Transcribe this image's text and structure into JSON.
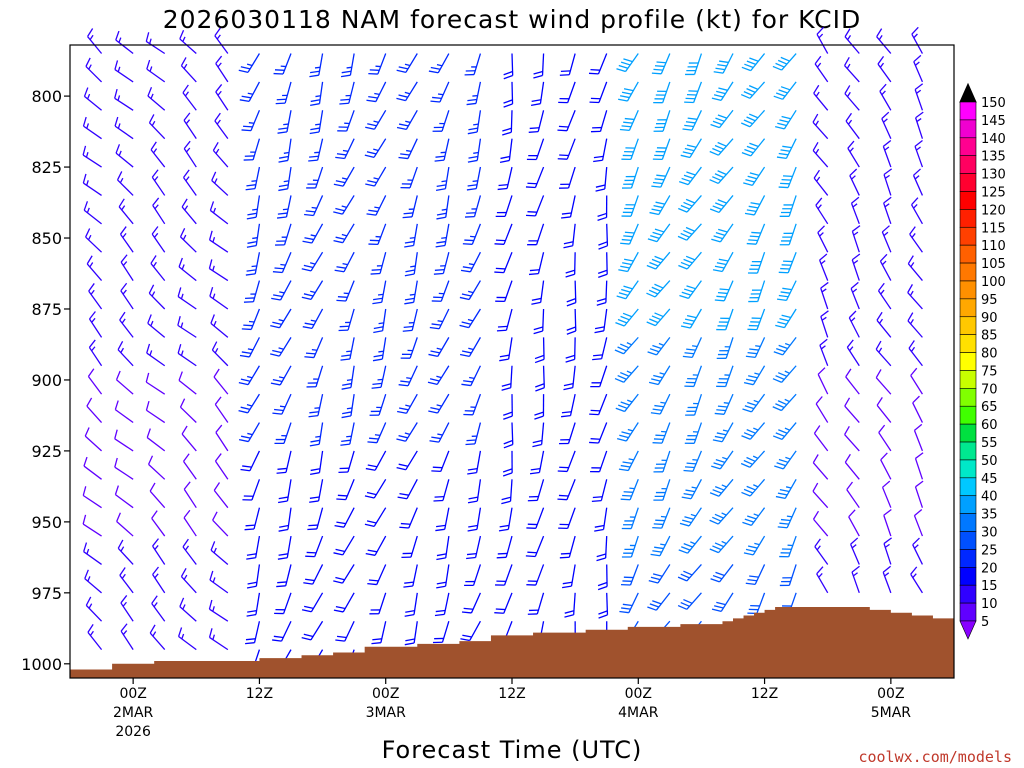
{
  "chart_data": {
    "type": "wind-barb time-height profile",
    "title": "2026030118 NAM forecast wind profile (kt) for KCID",
    "xlabel": "Forecast Time (UTC)",
    "credit": "coolwx.com/models",
    "y_ticks": [
      "800",
      "825",
      "850",
      "875",
      "900",
      "925",
      "950",
      "975",
      "1000"
    ],
    "x_ticks": [
      {
        "hour": "00Z",
        "date": "2MAR",
        "year": "2026"
      },
      {
        "hour": "12Z",
        "date": "",
        "year": ""
      },
      {
        "hour": "00Z",
        "date": "3MAR",
        "year": ""
      },
      {
        "hour": "12Z",
        "date": "",
        "year": ""
      },
      {
        "hour": "00Z",
        "date": "4MAR",
        "year": ""
      },
      {
        "hour": "12Z",
        "date": "",
        "year": ""
      },
      {
        "hour": "00Z",
        "date": "5MAR",
        "year": ""
      }
    ],
    "ylim": [
      1005,
      782
    ],
    "xlim_hours": [
      0,
      84
    ],
    "colorbar": {
      "labels": [
        "150",
        "145",
        "140",
        "135",
        "130",
        "125",
        "120",
        "115",
        "110",
        "105",
        "100",
        "95",
        "90",
        "85",
        "80",
        "75",
        "70",
        "65",
        "60",
        "55",
        "50",
        "45",
        "40",
        "35",
        "30",
        "25",
        "20",
        "15",
        "10",
        "5"
      ],
      "colors": [
        "#ff00ff",
        "#f000d0",
        "#ff0090",
        "#ff0060",
        "#ff0030",
        "#ff0000",
        "#ff2000",
        "#ff4000",
        "#ff6000",
        "#ff7800",
        "#ff9000",
        "#ffa800",
        "#ffc800",
        "#ffe000",
        "#ffff00",
        "#c8ff00",
        "#80ff00",
        "#40ff00",
        "#00e040",
        "#00e890",
        "#00e8c8",
        "#00c8ff",
        "#00a0ff",
        "#0078ff",
        "#0050ff",
        "#0028ff",
        "#0000ff",
        "#3000ff",
        "#6000ff",
        "#8800ff"
      ],
      "min": 5,
      "max": 150
    },
    "surface_pressure_steps": [
      [
        0,
        1002
      ],
      [
        4,
        1000
      ],
      [
        8,
        999
      ],
      [
        14,
        999
      ],
      [
        18,
        998
      ],
      [
        22,
        997
      ],
      [
        25,
        996
      ],
      [
        28,
        994
      ],
      [
        33,
        993
      ],
      [
        37,
        992
      ],
      [
        40,
        990
      ],
      [
        44,
        989
      ],
      [
        49,
        988
      ],
      [
        53,
        987
      ],
      [
        58,
        986
      ],
      [
        62,
        985
      ],
      [
        63,
        984
      ],
      [
        64,
        983
      ],
      [
        65,
        982
      ],
      [
        66,
        981
      ],
      [
        67,
        980
      ],
      [
        72,
        980
      ],
      [
        75,
        980
      ],
      [
        76,
        981
      ],
      [
        78,
        982
      ],
      [
        80,
        983
      ],
      [
        82,
        984
      ],
      [
        84,
        984
      ]
    ],
    "terrain_color": "#a0522d",
    "wind_field": {
      "times_per_3h": 29,
      "levels": [
        785,
        795,
        805,
        815,
        825,
        835,
        845,
        855,
        865,
        875,
        885,
        895,
        905,
        915,
        925,
        935,
        945,
        955,
        965,
        975,
        985,
        995,
        1005
      ],
      "description_regimes": [
        {
          "hours": [
            0,
            18
          ],
          "direction_deg": 315,
          "speed_kt": 12
        },
        {
          "hours": [
            18,
            42
          ],
          "direction_deg": 200,
          "speed_kt": 22
        },
        {
          "hours": [
            42,
            54
          ],
          "direction_deg": 190,
          "speed_kt": 18
        },
        {
          "hours": [
            54,
            72
          ],
          "direction_deg": 210,
          "speed_kt": 35
        },
        {
          "hours": [
            72,
            84
          ],
          "direction_deg": 330,
          "speed_kt": 12
        }
      ]
    }
  }
}
